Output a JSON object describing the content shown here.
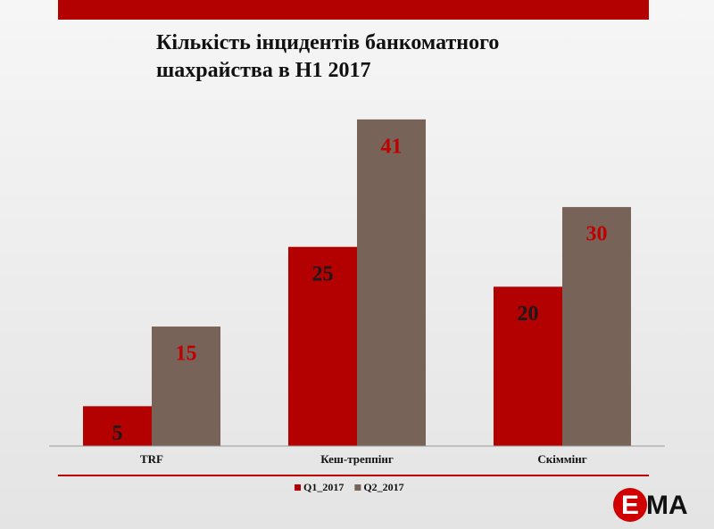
{
  "chart_data": {
    "type": "bar",
    "title": "Кількість інцидентів банкоматного шахрайства в Н1 2017",
    "categories": [
      "TRF",
      "Кеш-треппінг",
      "Скіммінг"
    ],
    "series": [
      {
        "name": "Q1_2017",
        "color": "#b30000",
        "label_color": "#1a1a1a",
        "values": [
          5,
          25,
          20
        ]
      },
      {
        "name": "Q2_2017",
        "color": "#786359",
        "label_color": "#c00000",
        "values": [
          15,
          41,
          30
        ]
      }
    ],
    "ylim": [
      0,
      45
    ],
    "legend": "bottom"
  },
  "logo": [
    "E",
    "MA"
  ]
}
